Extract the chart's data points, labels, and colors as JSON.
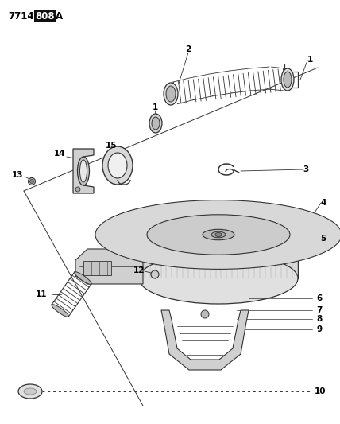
{
  "title": "7714 808 A",
  "bg": "#ffffff",
  "gray": "#333333",
  "lgray": "#888888",
  "figsize": [
    4.28,
    5.33
  ],
  "dpi": 100
}
